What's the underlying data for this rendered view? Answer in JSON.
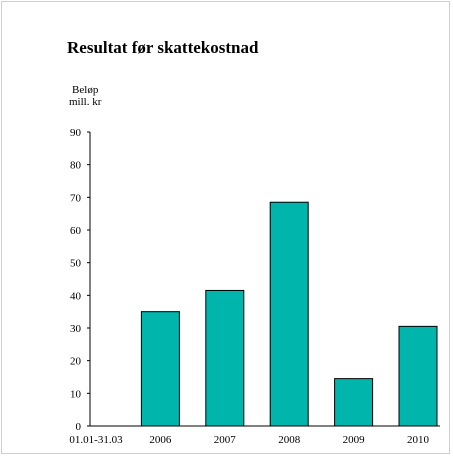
{
  "chart_data": {
    "type": "bar",
    "title": "Resultat før skattekostnad",
    "ylabel_line1": "Beløp",
    "ylabel_line2": "mill. kr",
    "categories": [
      "01.01-31.03",
      "2006",
      "2007",
      "2008",
      "2009",
      "2010"
    ],
    "values": [
      0,
      35,
      41.5,
      68.5,
      14.5,
      30.5
    ],
    "ylim": [
      0,
      90
    ],
    "yticks": [
      0,
      10,
      20,
      30,
      40,
      50,
      60,
      70,
      80,
      90
    ],
    "grid": false,
    "bar_color": "#00b5ac",
    "bar_outline": "#000000"
  }
}
